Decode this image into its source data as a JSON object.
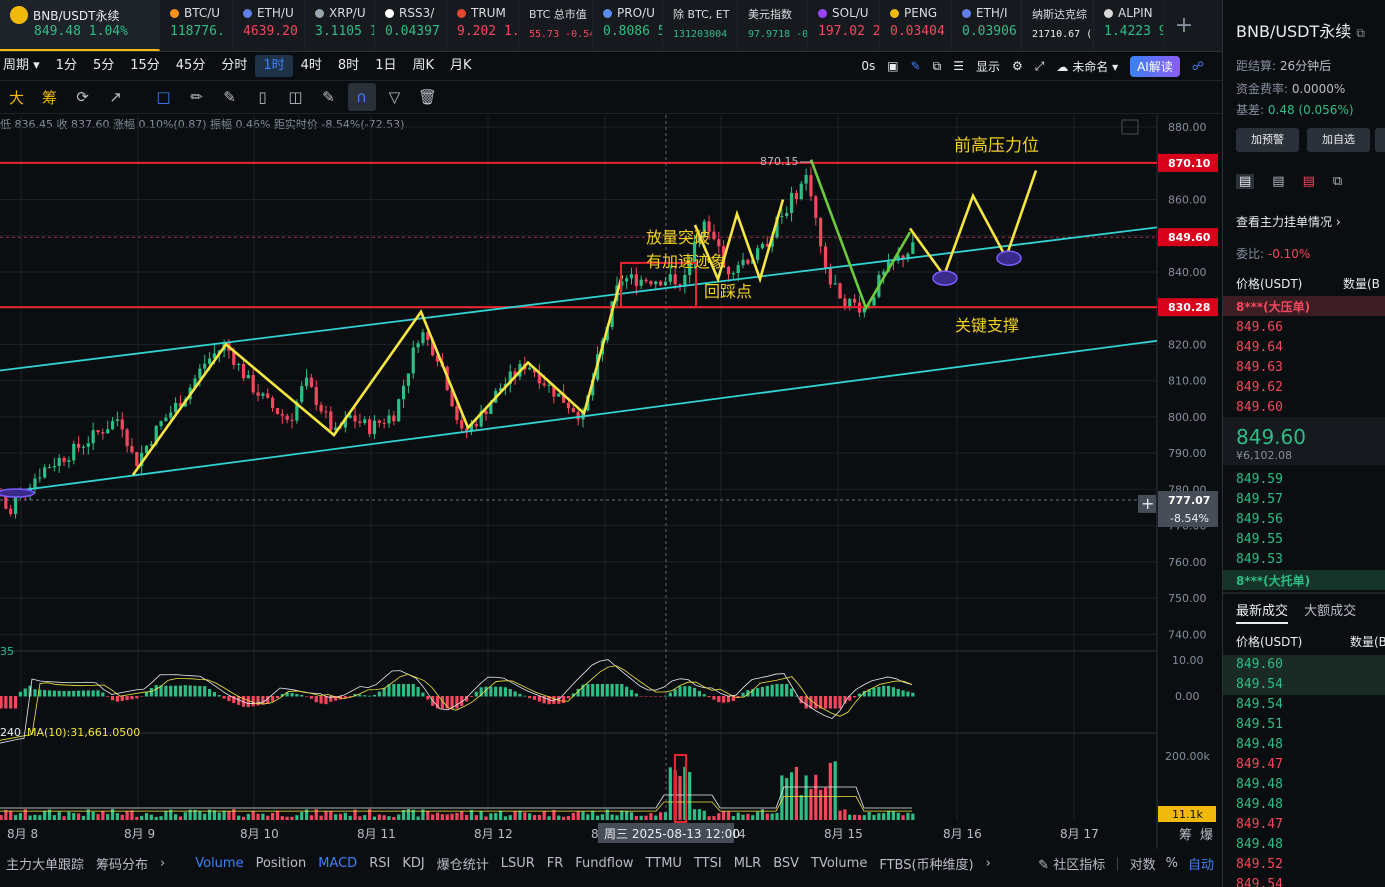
{
  "tabs": [
    {
      "name": "BNB/USDT永续",
      "price": "849.48",
      "change": "1.04%",
      "dir": "up",
      "active": true,
      "color": "#f0b90b",
      "icon": "bnb-logo-icon"
    },
    {
      "name": "BTC/U",
      "price": "118776.",
      "dir": "up",
      "color": "#f7931a",
      "icon": "btc-coin-icon"
    },
    {
      "name": "ETH/U",
      "price": "4639.20",
      "dir": "dn",
      "color": "#627eea",
      "icon": "eth-coin-icon"
    },
    {
      "name": "XRP/U",
      "price": "3.1105 1",
      "dir": "up",
      "color": "#9aa4ad",
      "icon": "xrp-coin-icon"
    },
    {
      "name": "RSS3/",
      "price": "0.04397",
      "dir": "up",
      "color": "#ffffff",
      "icon": "rss3-coin-icon"
    },
    {
      "name": "TRUM",
      "price": "9.202 1.",
      "dir": "dn",
      "color": "#e0492f",
      "icon": "trump-coin-icon"
    },
    {
      "name": "BTC 总市值",
      "price": "55.73 -0.54",
      "dir": "dn",
      "small": true
    },
    {
      "name": "PRO/U",
      "price": "0.8086 5",
      "dir": "up",
      "color": "#5b8def",
      "icon": "pro-coin-icon"
    },
    {
      "name": "除 BTC, ET",
      "price": "131203004",
      "dir": "up",
      "small": true
    },
    {
      "name": "美元指数",
      "price": "97.9718 -0",
      "dir": "up",
      "small": true
    },
    {
      "name": "SOL/U",
      "price": "197.02 2",
      "dir": "dn",
      "color": "#9945ff",
      "icon": "sol-coin-icon"
    },
    {
      "name": "PENG",
      "price": "0.03404",
      "dir": "dn",
      "color": "#f0b90b",
      "icon": "pengu-coin-icon"
    },
    {
      "name": "ETH/I",
      "price": "0.03906",
      "dir": "up",
      "color": "#627eea",
      "icon": "eth-coin-icon"
    },
    {
      "name": "纳斯达克综",
      "price": "21710.67 (",
      "dir": "none",
      "small": true
    },
    {
      "name": "ALPIN",
      "price": "1.4223 9",
      "dir": "up",
      "color": "#d9d9d9",
      "icon": "alpine-coin-icon"
    }
  ],
  "intervals": [
    "周期",
    "1分",
    "5分",
    "15分",
    "45分",
    "分时",
    "1时",
    "4时",
    "8时",
    "1日",
    "周K",
    "月K"
  ],
  "selected_interval": "1时",
  "toolbar_right": {
    "countdown": "0s",
    "display": "显示",
    "layout": "未命名",
    "ai": "AI解读"
  },
  "draw_labels": {
    "left1": "大",
    "left2": "筹"
  },
  "ohlc_text": "低 836.45 收 837.60 涨幅 0.10%(0.87) 振幅 0.46% 距实时价 -8.54%(-72.53)",
  "chart_data": {
    "type": "candlestick",
    "yaxis_ticks": [
      880,
      870,
      860,
      850,
      840,
      830,
      820,
      810,
      800,
      790,
      780,
      770,
      760,
      750,
      740
    ],
    "ylim": [
      738,
      882
    ],
    "xaxis_ticks": [
      "8月 8",
      "8月 9",
      "8月 10",
      "8月 11",
      "8月 12",
      "8月 13",
      "8月 14",
      "8月 15",
      "8月 16",
      "8月 17"
    ],
    "hover_label": "周三 2025-08-13 12:00",
    "price_tags": [
      {
        "value": 870.1,
        "label": "870.10",
        "color": "#d9001b"
      },
      {
        "value": 849.6,
        "label": "849.60",
        "color": "#d9001b"
      },
      {
        "value": 830.28,
        "label": "830.28",
        "color": "#d9001b"
      },
      {
        "value": 777.07,
        "label": "777.07",
        "sub": "-8.54%",
        "color": "#474d57"
      }
    ],
    "high_marker": "870.15",
    "annotations": [
      {
        "text": "前高压力位"
      },
      {
        "text": "放量突破"
      },
      {
        "text": "有加速迹象"
      },
      {
        "text": "回踩点"
      },
      {
        "text": "关键支撑"
      }
    ],
    "macd_label": "35",
    "macd_ticks": [
      "10.00",
      "0.00"
    ],
    "volume_label": "240",
    "volume_ma": "MA(10):31,661.0500",
    "volume_ticks": [
      "200.00k"
    ],
    "volume_tag": "11.1k",
    "corner_labels": [
      "筹",
      "爆"
    ]
  },
  "bottom_tabs": [
    "主力大单跟踪",
    "筹码分布",
    "›",
    "Volume",
    "Position",
    "MACD",
    "RSI",
    "KDJ",
    "爆仓统计",
    "LSUR",
    "FR",
    "Fundflow",
    "TTMU",
    "TTSI",
    "MLR",
    "BSV",
    "TVolume",
    "FTBS(币种维度)",
    "›"
  ],
  "bottom_right": {
    "community": "社区指标",
    "log": "对数",
    "pct": "%",
    "auto": "自动"
  },
  "right_panel": {
    "title": "BNB/USDT永续",
    "settle_label": "距结算:",
    "settle_value": "26分钟后",
    "funding_label": "资金费率:",
    "funding_value": "0.0000%",
    "basis_label": "基差:",
    "basis_value": "0.48 (0.056%)",
    "btn_alert": "加预警",
    "btn_fav": "加自选",
    "depth_link": "查看主力挂单情况",
    "ratio_label": "委比:",
    "ratio_value": "-0.10%",
    "col_price": "价格(USDT)",
    "col_qty": "数量(B",
    "big_sell": "8***(大压单)",
    "asks": [
      "849.66",
      "849.64",
      "849.63",
      "849.62",
      "849.60"
    ],
    "last_price": "849.60",
    "last_cny": "¥6,102.08",
    "bids": [
      "849.59",
      "849.57",
      "849.56",
      "849.55",
      "849.53"
    ],
    "big_buy": "8***(大托单)",
    "trade_tab1": "最新成交",
    "trade_tab2": "大额成交",
    "trades": [
      {
        "p": "849.60",
        "d": "up"
      },
      {
        "p": "849.54",
        "d": "up"
      },
      {
        "p": "849.54",
        "d": "up"
      },
      {
        "p": "849.51",
        "d": "up"
      },
      {
        "p": "849.48",
        "d": "up"
      },
      {
        "p": "849.47",
        "d": "dn"
      },
      {
        "p": "849.48",
        "d": "up"
      },
      {
        "p": "849.48",
        "d": "up"
      },
      {
        "p": "849.47",
        "d": "dn"
      },
      {
        "p": "849.48",
        "d": "up"
      },
      {
        "p": "849.52",
        "d": "dn"
      },
      {
        "p": "849.54",
        "d": "dn"
      }
    ]
  }
}
